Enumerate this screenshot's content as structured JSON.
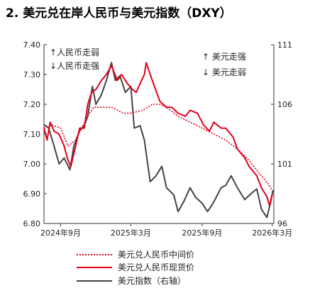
{
  "title": "2. 美元兑在岸人民币与美元指数（DXY）",
  "chart_data": {
    "type": "line",
    "x_ticks": [
      "2024年9月",
      "2025年3月",
      "2025年9月",
      "2026年3月"
    ],
    "x_range": [
      "2024-07-20",
      "2026-03-05"
    ],
    "left_axis": {
      "ticks": [
        "7.40",
        "7.30",
        "7.20",
        "7.10",
        "7.00",
        "6.90",
        "6.80"
      ],
      "range": [
        6.8,
        7.4
      ]
    },
    "right_axis": {
      "ticks": [
        "111",
        "106",
        "101",
        "96"
      ],
      "range": [
        96,
        111
      ]
    },
    "annotations": {
      "left_up": "↑人民币走弱",
      "left_down": "↓人民币走强",
      "right_up": "↑ 美元走强",
      "right_down": "↓ 美元走弱"
    },
    "series": [
      {
        "name": "美元兑人民币中间价",
        "axis": "left",
        "color": "#e0001a",
        "style": "dotted",
        "points": [
          [
            "2024-07-20",
            7.12
          ],
          [
            "2024-08-10",
            7.13
          ],
          [
            "2024-09-01",
            7.12
          ],
          [
            "2024-09-20",
            7.06
          ],
          [
            "2024-10-10",
            7.08
          ],
          [
            "2024-10-25",
            7.12
          ],
          [
            "2024-11-10",
            7.16
          ],
          [
            "2024-11-25",
            7.19
          ],
          [
            "2024-12-10",
            7.19
          ],
          [
            "2024-12-25",
            7.19
          ],
          [
            "2025-01-10",
            7.19
          ],
          [
            "2025-02-10",
            7.17
          ],
          [
            "2025-03-01",
            7.17
          ],
          [
            "2025-04-01",
            7.18
          ],
          [
            "2025-04-25",
            7.2
          ],
          [
            "2025-05-15",
            7.2
          ],
          [
            "2025-06-01",
            7.19
          ],
          [
            "2025-07-01",
            7.16
          ],
          [
            "2025-08-01",
            7.14
          ],
          [
            "2025-09-01",
            7.12
          ],
          [
            "2025-10-01",
            7.1
          ],
          [
            "2025-11-01",
            7.08
          ],
          [
            "2025-12-01",
            7.05
          ],
          [
            "2026-01-01",
            7.01
          ],
          [
            "2026-02-01",
            6.96
          ],
          [
            "2026-02-20",
            6.93
          ],
          [
            "2026-03-01",
            6.91
          ]
        ]
      },
      {
        "name": "美元兑人民币现货价",
        "axis": "left",
        "color": "#e0001a",
        "style": "solid",
        "points": [
          [
            "2024-07-20",
            7.12
          ],
          [
            "2024-07-28",
            7.08
          ],
          [
            "2024-08-05",
            7.14
          ],
          [
            "2024-08-15",
            7.11
          ],
          [
            "2024-08-28",
            7.1
          ],
          [
            "2024-09-10",
            7.06
          ],
          [
            "2024-09-18",
            7.02
          ],
          [
            "2024-09-27",
            6.99
          ],
          [
            "2024-10-08",
            7.05
          ],
          [
            "2024-10-20",
            7.12
          ],
          [
            "2024-11-01",
            7.12
          ],
          [
            "2024-11-10",
            7.2
          ],
          [
            "2024-11-20",
            7.24
          ],
          [
            "2024-12-01",
            7.25
          ],
          [
            "2024-12-15",
            7.28
          ],
          [
            "2024-12-28",
            7.3
          ],
          [
            "2025-01-10",
            7.33
          ],
          [
            "2025-01-25",
            7.28
          ],
          [
            "2025-02-05",
            7.3
          ],
          [
            "2025-02-20",
            7.27
          ],
          [
            "2025-03-05",
            7.25
          ],
          [
            "2025-03-15",
            7.24
          ],
          [
            "2025-03-25",
            7.27
          ],
          [
            "2025-04-05",
            7.3
          ],
          [
            "2025-04-10",
            7.34
          ],
          [
            "2025-04-20",
            7.3
          ],
          [
            "2025-05-01",
            7.26
          ],
          [
            "2025-05-15",
            7.21
          ],
          [
            "2025-06-01",
            7.19
          ],
          [
            "2025-06-15",
            7.19
          ],
          [
            "2025-07-01",
            7.17
          ],
          [
            "2025-07-20",
            7.16
          ],
          [
            "2025-08-01",
            7.18
          ],
          [
            "2025-08-20",
            7.17
          ],
          [
            "2025-09-05",
            7.13
          ],
          [
            "2025-09-20",
            7.11
          ],
          [
            "2025-10-01",
            7.14
          ],
          [
            "2025-10-20",
            7.12
          ],
          [
            "2025-11-01",
            7.12
          ],
          [
            "2025-11-20",
            7.09
          ],
          [
            "2025-12-01",
            7.05
          ],
          [
            "2025-12-20",
            7.02
          ],
          [
            "2026-01-01",
            6.99
          ],
          [
            "2026-01-20",
            6.96
          ],
          [
            "2026-02-01",
            6.92
          ],
          [
            "2026-02-15",
            6.89
          ],
          [
            "2026-02-22",
            6.86
          ],
          [
            "2026-03-01",
            6.9
          ]
        ]
      },
      {
        "name": "美元指数（右轴）",
        "axis": "right",
        "color": "#444444",
        "style": "solid",
        "points": [
          [
            "2024-07-20",
            104.3
          ],
          [
            "2024-08-01",
            104.0
          ],
          [
            "2024-08-15",
            102.5
          ],
          [
            "2024-08-28",
            101.0
          ],
          [
            "2024-09-10",
            101.5
          ],
          [
            "2024-09-25",
            100.5
          ],
          [
            "2024-10-05",
            102.5
          ],
          [
            "2024-10-20",
            103.8
          ],
          [
            "2024-11-01",
            104.2
          ],
          [
            "2024-11-10",
            105.0
          ],
          [
            "2024-11-22",
            107.5
          ],
          [
            "2024-12-01",
            106.0
          ],
          [
            "2024-12-15",
            106.8
          ],
          [
            "2024-12-28",
            108.0
          ],
          [
            "2025-01-10",
            109.5
          ],
          [
            "2025-01-20",
            108.0
          ],
          [
            "2025-02-01",
            108.4
          ],
          [
            "2025-02-15",
            107.0
          ],
          [
            "2025-03-01",
            107.5
          ],
          [
            "2025-03-10",
            104.0
          ],
          [
            "2025-03-25",
            104.2
          ],
          [
            "2025-04-05",
            103.0
          ],
          [
            "2025-04-20",
            99.5
          ],
          [
            "2025-05-05",
            100.0
          ],
          [
            "2025-05-20",
            100.8
          ],
          [
            "2025-06-01",
            99.0
          ],
          [
            "2025-06-20",
            98.4
          ],
          [
            "2025-07-01",
            97.0
          ],
          [
            "2025-07-15",
            97.8
          ],
          [
            "2025-08-01",
            99.0
          ],
          [
            "2025-08-15",
            98.2
          ],
          [
            "2025-09-01",
            97.7
          ],
          [
            "2025-09-15",
            97.0
          ],
          [
            "2025-10-01",
            97.8
          ],
          [
            "2025-10-20",
            99.0
          ],
          [
            "2025-11-01",
            99.2
          ],
          [
            "2025-11-15",
            100.0
          ],
          [
            "2025-12-01",
            99.0
          ],
          [
            "2025-12-20",
            98.0
          ],
          [
            "2026-01-05",
            98.5
          ],
          [
            "2026-01-20",
            98.9
          ],
          [
            "2026-02-01",
            97.2
          ],
          [
            "2026-02-15",
            96.5
          ],
          [
            "2026-02-25",
            97.8
          ],
          [
            "2026-03-03",
            98.8
          ]
        ]
      }
    ]
  },
  "legend": [
    "美元兑人民币中间价",
    "美元兑人民币现货价",
    "美元指数（右轴）"
  ]
}
